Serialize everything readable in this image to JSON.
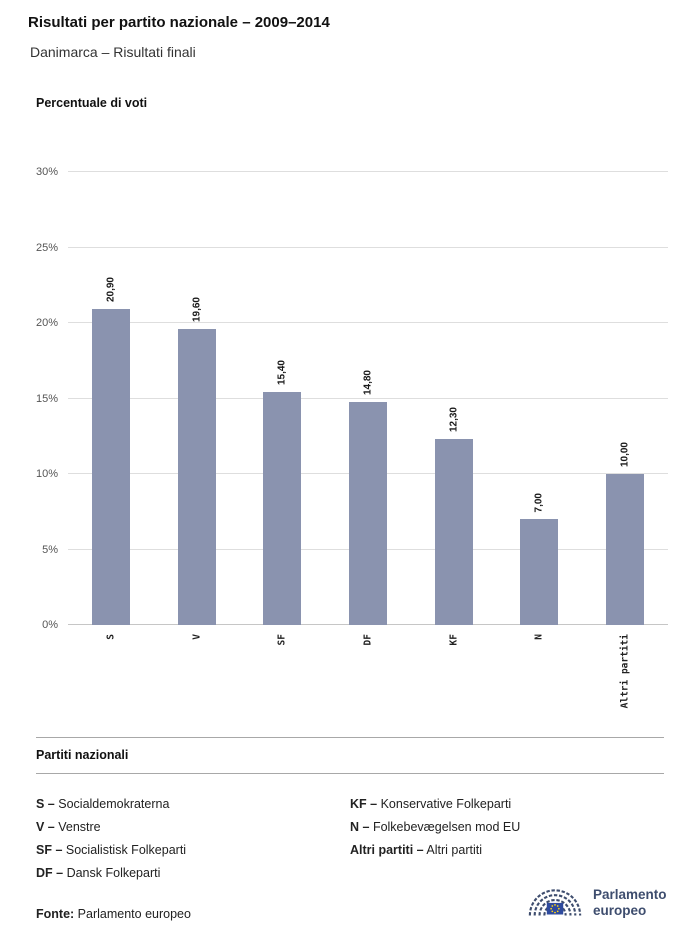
{
  "header": {
    "title": "Risultati per partito nazionale – 2009–2014",
    "subtitle": "Danimarca – Risultati finali"
  },
  "chart_data": {
    "type": "bar",
    "title": "Percentuale di voti",
    "categories": [
      "S",
      "V",
      "SF",
      "DF",
      "KF",
      "N",
      "Altri partiti"
    ],
    "values": [
      20.9,
      19.6,
      15.4,
      14.8,
      12.3,
      7.0,
      10.0
    ],
    "value_labels": [
      "20,90",
      "19,60",
      "15,40",
      "14,80",
      "12,30",
      "7,00",
      "10,00"
    ],
    "ylabel": "Percentuale di voti",
    "xlabel": "",
    "ylim": [
      0,
      30
    ],
    "yticks": [
      "0%",
      "5%",
      "10%",
      "15%",
      "20%",
      "25%",
      "30%"
    ],
    "ytick_values": [
      0,
      5,
      10,
      15,
      20,
      25,
      30
    ],
    "grid": true,
    "legend_position": "none",
    "bar_color": "#8a93af"
  },
  "legend": {
    "heading": "Partiti nazionali",
    "col1": [
      {
        "key": "S –",
        "label": "Socialdemokraterna"
      },
      {
        "key": "V –",
        "label": "Venstre"
      },
      {
        "key": "SF –",
        "label": "Socialistisk Folkeparti"
      },
      {
        "key": "DF –",
        "label": "Dansk Folkeparti"
      }
    ],
    "col2": [
      {
        "key": "KF –",
        "label": "Konservative Folkeparti"
      },
      {
        "key": "N –",
        "label": "Folkebevægelsen mod EU"
      },
      {
        "key": "Altri partiti –",
        "label": "Altri partiti"
      }
    ]
  },
  "footer": {
    "source_label": "Fonte:",
    "source_value": "Parlamento europeo",
    "logo_line1": "Parlamento",
    "logo_line2": "europeo",
    "logo_color": "#3e4d6e"
  }
}
